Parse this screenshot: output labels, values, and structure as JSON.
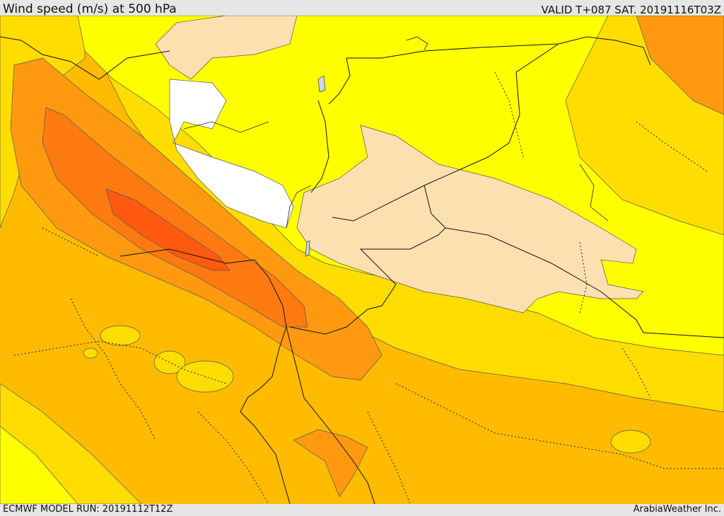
{
  "header": {
    "title": "Wind speed (m/s) at 500 hPa",
    "valid": "VALID T+087 SAT. 20191116T03Z"
  },
  "footer": {
    "model_run": "ECMWF MODEL RUN: 20191112T12Z",
    "credit": "ArabiaWeather Inc."
  },
  "palette": {
    "calm": "#ffffff",
    "light": "#fde0b0",
    "band_yellow": "#ffff00",
    "band_gold": "#ffdd00",
    "band_amber": "#ffbb00",
    "band_orange": "#ff9a10",
    "band_deep_orange": "#ff7a10",
    "band_red_orange": "#ff5a10",
    "water": "#cfd8e8"
  }
}
